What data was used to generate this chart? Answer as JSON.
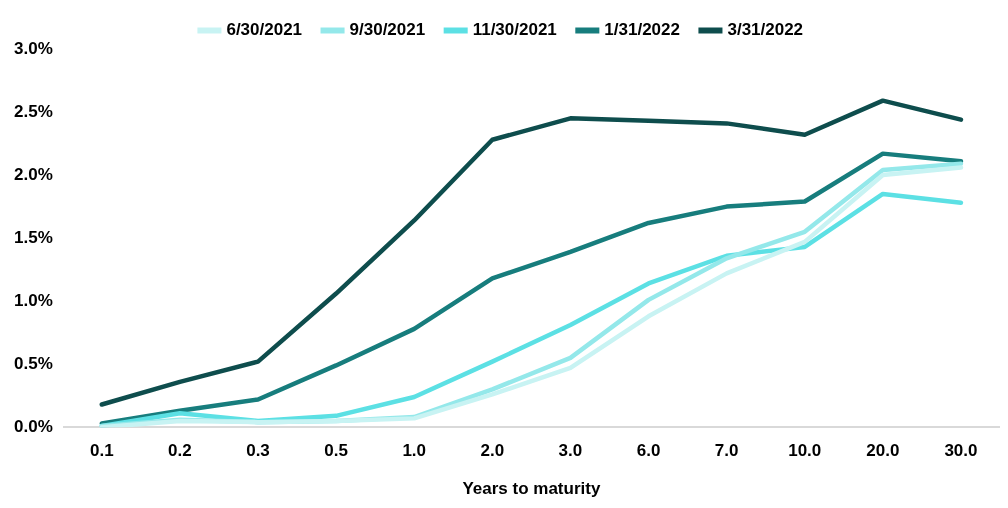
{
  "chart_data": {
    "type": "line",
    "xlabel": "Years to maturity",
    "categories": [
      "0.1",
      "0.2",
      "0.3",
      "0.5",
      "1.0",
      "2.0",
      "3.0",
      "6.0",
      "7.0",
      "10.0",
      "20.0",
      "30.0"
    ],
    "series": [
      {
        "name": "6/30/2021",
        "color": "#c8f3f3",
        "values": [
          0.0,
          0.05,
          0.04,
          0.05,
          0.07,
          0.26,
          0.47,
          0.88,
          1.22,
          1.47,
          2.0,
          2.06
        ]
      },
      {
        "name": "9/30/2021",
        "color": "#94e8ea",
        "values": [
          0.01,
          0.06,
          0.04,
          0.05,
          0.08,
          0.3,
          0.55,
          1.01,
          1.34,
          1.55,
          2.04,
          2.09
        ]
      },
      {
        "name": "11/30/2021",
        "color": "#5ce0e4",
        "values": [
          0.01,
          0.11,
          0.05,
          0.09,
          0.24,
          0.52,
          0.81,
          1.14,
          1.36,
          1.43,
          1.85,
          1.78
        ]
      },
      {
        "name": "1/31/2022",
        "color": "#177d7d",
        "values": [
          0.03,
          0.13,
          0.22,
          0.49,
          0.78,
          1.18,
          1.39,
          1.62,
          1.75,
          1.79,
          2.17,
          2.11
        ]
      },
      {
        "name": "3/31/2022",
        "color": "#0e4d4d",
        "values": [
          0.18,
          0.36,
          0.52,
          1.06,
          1.64,
          2.28,
          2.45,
          2.43,
          2.41,
          2.32,
          2.59,
          2.44
        ]
      }
    ],
    "ylim": [
      0,
      3
    ],
    "yticks": [
      {
        "value": 0,
        "label": "0.0%"
      },
      {
        "value": 0.5,
        "label": "0.5%"
      },
      {
        "value": 1,
        "label": "1.0%"
      },
      {
        "value": 1.5,
        "label": "1.5%"
      },
      {
        "value": 2,
        "label": "2.0%"
      },
      {
        "value": 2.5,
        "label": "2.5%"
      },
      {
        "value": 3,
        "label": "3.0%"
      }
    ],
    "grid": false,
    "legend": "top",
    "marker": "none",
    "line_style": "solid"
  }
}
